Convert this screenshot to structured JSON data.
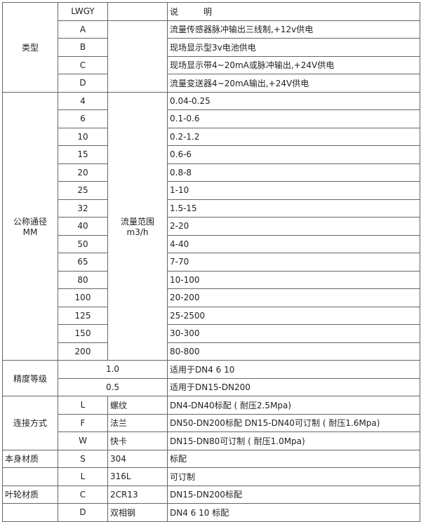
{
  "type": {
    "label": "类型",
    "header_code": "LWGY",
    "header_desc": "说　　　明",
    "rows": [
      {
        "code": "A",
        "desc": "流量传感器脉冲输出三线制,+12v供电"
      },
      {
        "code": "B",
        "desc": "现场显示型3v电池供电"
      },
      {
        "code": "C",
        "desc": "现场显示带4~20mA或脉冲输出,+24V供电"
      },
      {
        "code": "D",
        "desc": "流量变送器4~20mA输出,+24V供电"
      }
    ]
  },
  "diameter": {
    "label1": "公称通径",
    "label2": "MM",
    "range_label1": "流量范围",
    "range_label2": "m3/h",
    "rows": [
      {
        "dn": "4",
        "range": "0.04-0.25"
      },
      {
        "dn": "6",
        "range": "0.1-0.6"
      },
      {
        "dn": "10",
        "range": "0.2-1.2"
      },
      {
        "dn": "15",
        "range": "0.6-6"
      },
      {
        "dn": "20",
        "range": "0.8-8"
      },
      {
        "dn": "25",
        "range": "1-10"
      },
      {
        "dn": "32",
        "range": "1.5-15"
      },
      {
        "dn": "40",
        "range": "2-20"
      },
      {
        "dn": "50",
        "range": "4-40"
      },
      {
        "dn": "65",
        "range": "7-70"
      },
      {
        "dn": "80",
        "range": "10-100"
      },
      {
        "dn": "100",
        "range": "20-200"
      },
      {
        "dn": "125",
        "range": "25-2500"
      },
      {
        "dn": "150",
        "range": "30-300"
      },
      {
        "dn": "200",
        "range": "80-800"
      }
    ]
  },
  "accuracy": {
    "label": "精度等级",
    "rows": [
      {
        "grade": "1.0",
        "desc": "适用于DN4  6  10"
      },
      {
        "grade": "0.5",
        "desc": "适用于DN15-DN200"
      }
    ]
  },
  "connection": {
    "label": "连接方式",
    "rows": [
      {
        "code": "L",
        "name": "螺纹",
        "desc": "DN4-DN40标配 ( 耐压2.5Mpa)"
      },
      {
        "code": "F",
        "name": "法兰",
        "desc": "DN50-DN200标配 DN15-DN40可订制 ( 耐压1.6Mpa)"
      },
      {
        "code": "W",
        "name": "快卡",
        "desc": "DN15-DN80可订制  ( 耐压1.0Mpa)"
      }
    ]
  },
  "body_material": {
    "label": "本身材质",
    "rows": [
      {
        "code": "S",
        "name": "304",
        "desc": "标配"
      },
      {
        "code": "L",
        "name": "316L",
        "desc": "可订制"
      }
    ]
  },
  "impeller_material": {
    "label": "叶轮材质",
    "rows": [
      {
        "code": "C",
        "name": "2CR13",
        "desc": "DN15-DN200标配"
      },
      {
        "code": "D",
        "name": "双相钢",
        "desc": "DN4 6 10 标配"
      }
    ]
  }
}
